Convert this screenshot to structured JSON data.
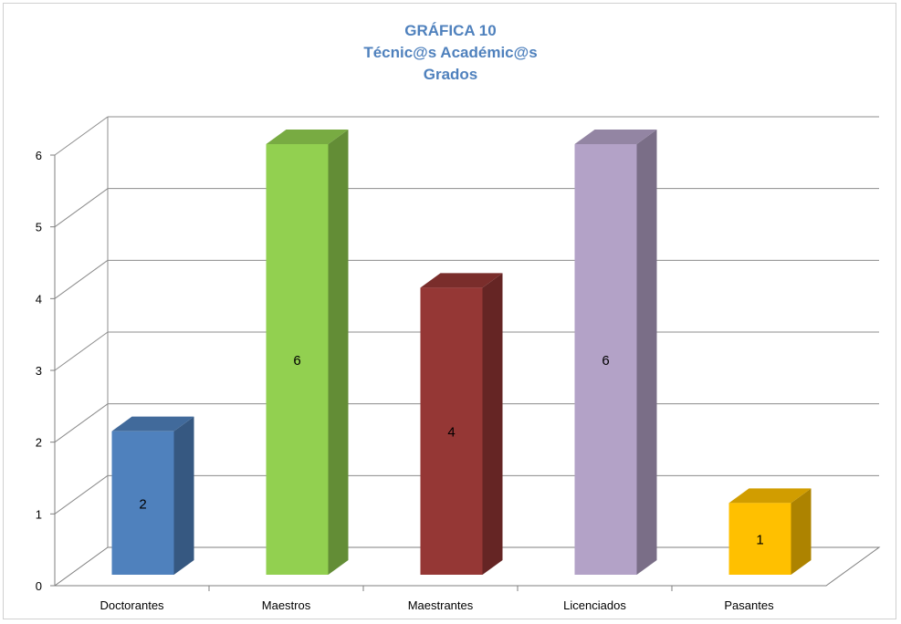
{
  "colors": {
    "title": "#4f81bd",
    "gridline": "#8c8c8c",
    "axis": "#7f7f7f"
  },
  "chart_data": {
    "type": "bar",
    "style": "3d-column",
    "title_lines": [
      "GRÁFICA 10",
      "Técnic@s Académic@s",
      "Grados"
    ],
    "categories": [
      "Doctorantes",
      "Maestros",
      "Maestrantes",
      "Licenciados",
      "Pasantes"
    ],
    "values": [
      2,
      6,
      4,
      6,
      1
    ],
    "data_labels": [
      "2",
      "6",
      "4",
      "6",
      "1"
    ],
    "bar_colors": [
      "#4f81bd",
      "#92d050",
      "#953735",
      "#b3a2c7",
      "#ffc000"
    ],
    "ylim": [
      0,
      6
    ],
    "yticks": [
      "0",
      "1",
      "2",
      "3",
      "4",
      "5",
      "6"
    ],
    "grid": true,
    "legend": "none"
  }
}
